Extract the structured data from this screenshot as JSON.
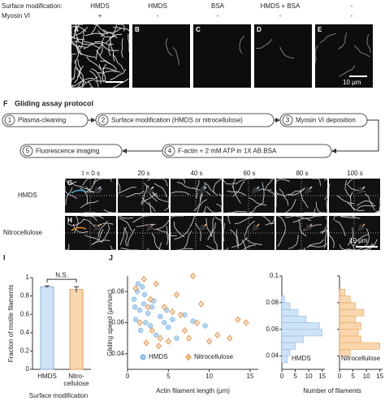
{
  "conditions": {
    "row_labels": [
      "Surface modification:",
      "Myosin VI"
    ],
    "surface": [
      "HMDS",
      "HMDS",
      "BSA",
      "HMDS + BSA",
      "-"
    ],
    "myosin": [
      "+",
      "-",
      "-",
      "-",
      "-"
    ]
  },
  "panels_top": {
    "letters": [
      "A",
      "B",
      "C",
      "D",
      "E"
    ],
    "scale_label": "10 μm"
  },
  "protocol": {
    "letter": "F",
    "title": "Gliding assay protocol",
    "steps": [
      {
        "number": 1,
        "text": "Plasma-cleaning"
      },
      {
        "number": 2,
        "text": "Surface modification (HMDS or nitrocellulose)"
      },
      {
        "number": 3,
        "text": "Myosin VI deposition"
      },
      {
        "number": 4,
        "text": "F-actin + 2 mM ATP in 1X AB.BSA"
      },
      {
        "number": 5,
        "text": "Fluorescence imaging"
      }
    ]
  },
  "timelapse": {
    "times": [
      "t = 0 s",
      "20 s",
      "40 s",
      "60 s",
      "80 s",
      "100 s"
    ],
    "rows": [
      {
        "letter": "G",
        "label": "HMDS"
      },
      {
        "letter": "H",
        "label": "Nitrocellulose"
      }
    ],
    "scale_label": "10 μm"
  },
  "chart_data": [
    {
      "type": "bar",
      "panel_letter": "I",
      "categories": [
        "HMDS",
        "Nitro-cellulose"
      ],
      "values": [
        0.9,
        0.87
      ],
      "errors": [
        0.01,
        0.03
      ],
      "colors": [
        "#cfe3f7",
        "#f9d6ad"
      ],
      "ylim": [
        0,
        1
      ],
      "yticks": [
        0,
        0.2,
        0.4,
        0.6,
        0.8,
        1
      ],
      "annotation": "N.S.",
      "x_label": "Surface modification",
      "y_label": "Fraction of motile filaments"
    },
    {
      "type": "scatter",
      "panel_letter": "J",
      "x_label": "Actin filament length (μm)",
      "y_label": "Gliding speed (μm/sec)",
      "xlim": [
        0,
        16
      ],
      "xticks": [
        0,
        5,
        10,
        15
      ],
      "ylim": [
        0.03,
        0.09
      ],
      "yticks": [
        0.04,
        0.06,
        0.08
      ],
      "series": [
        {
          "name": "HMDS",
          "color": "#9cc9ef",
          "x": [
            0.8,
            1.0,
            1.2,
            1.5,
            1.6,
            1.8,
            2.0,
            2.2,
            2.5,
            2.8,
            3.0,
            3.5,
            4.0,
            4.5,
            5.0,
            5.5,
            6.0,
            7.0,
            8.0,
            9.5,
            1.3,
            2.1,
            0.9,
            3.2,
            4.8
          ],
          "values": [
            0.075,
            0.062,
            0.08,
            0.068,
            0.055,
            0.083,
            0.072,
            0.06,
            0.066,
            0.058,
            0.07,
            0.052,
            0.064,
            0.06,
            0.057,
            0.062,
            0.05,
            0.065,
            0.061,
            0.058,
            0.085,
            0.078,
            0.07,
            0.074,
            0.068
          ]
        },
        {
          "name": "Nitrocellulose",
          "color": "#f7c894",
          "x": [
            1.0,
            1.5,
            2.0,
            2.3,
            2.8,
            3.0,
            3.5,
            4.0,
            4.5,
            5.0,
            5.5,
            6.0,
            7.0,
            7.5,
            8.0,
            8.5,
            9.0,
            10.0,
            11.0,
            12.5,
            13.5,
            14.5,
            2.5,
            3.8,
            6.5
          ],
          "values": [
            0.082,
            0.06,
            0.088,
            0.047,
            0.075,
            0.055,
            0.085,
            0.05,
            0.07,
            0.048,
            0.067,
            0.078,
            0.055,
            0.05,
            0.09,
            0.06,
            0.072,
            0.048,
            0.052,
            0.05,
            0.062,
            0.06,
            0.07,
            0.045,
            0.065
          ]
        }
      ]
    },
    {
      "type": "histogram",
      "label": "HMDS",
      "x_label": "Number of filaments",
      "color": "#cfe3f7",
      "bins": [
        0.035,
        0.04,
        0.045,
        0.05,
        0.055,
        0.06,
        0.065,
        0.07,
        0.075,
        0.08,
        0.085
      ],
      "values": [
        2,
        3,
        5,
        8,
        15,
        14,
        9,
        6,
        3,
        1
      ],
      "xlim": [
        0,
        16
      ],
      "xticks": [
        0,
        5,
        10,
        15
      ],
      "ylim": [
        0.03,
        0.1
      ],
      "yticks": [
        0.04,
        0.06,
        0.08,
        0.1
      ],
      "ytick_labels": true
    },
    {
      "type": "histogram",
      "label": "Nitrocellulose",
      "color": "#f9d6ad",
      "bins": [
        0.04,
        0.045,
        0.05,
        0.055,
        0.06,
        0.065,
        0.07,
        0.075,
        0.08,
        0.085,
        0.09
      ],
      "values": [
        4,
        15,
        8,
        7,
        8,
        6,
        9,
        6,
        4,
        2
      ],
      "xlim": [
        0,
        16
      ],
      "xticks": [
        0,
        5,
        10,
        15
      ],
      "ylim": [
        0.03,
        0.1
      ],
      "yticks": [
        0.04,
        0.06,
        0.08,
        0.1
      ],
      "ytick_labels": false
    }
  ]
}
